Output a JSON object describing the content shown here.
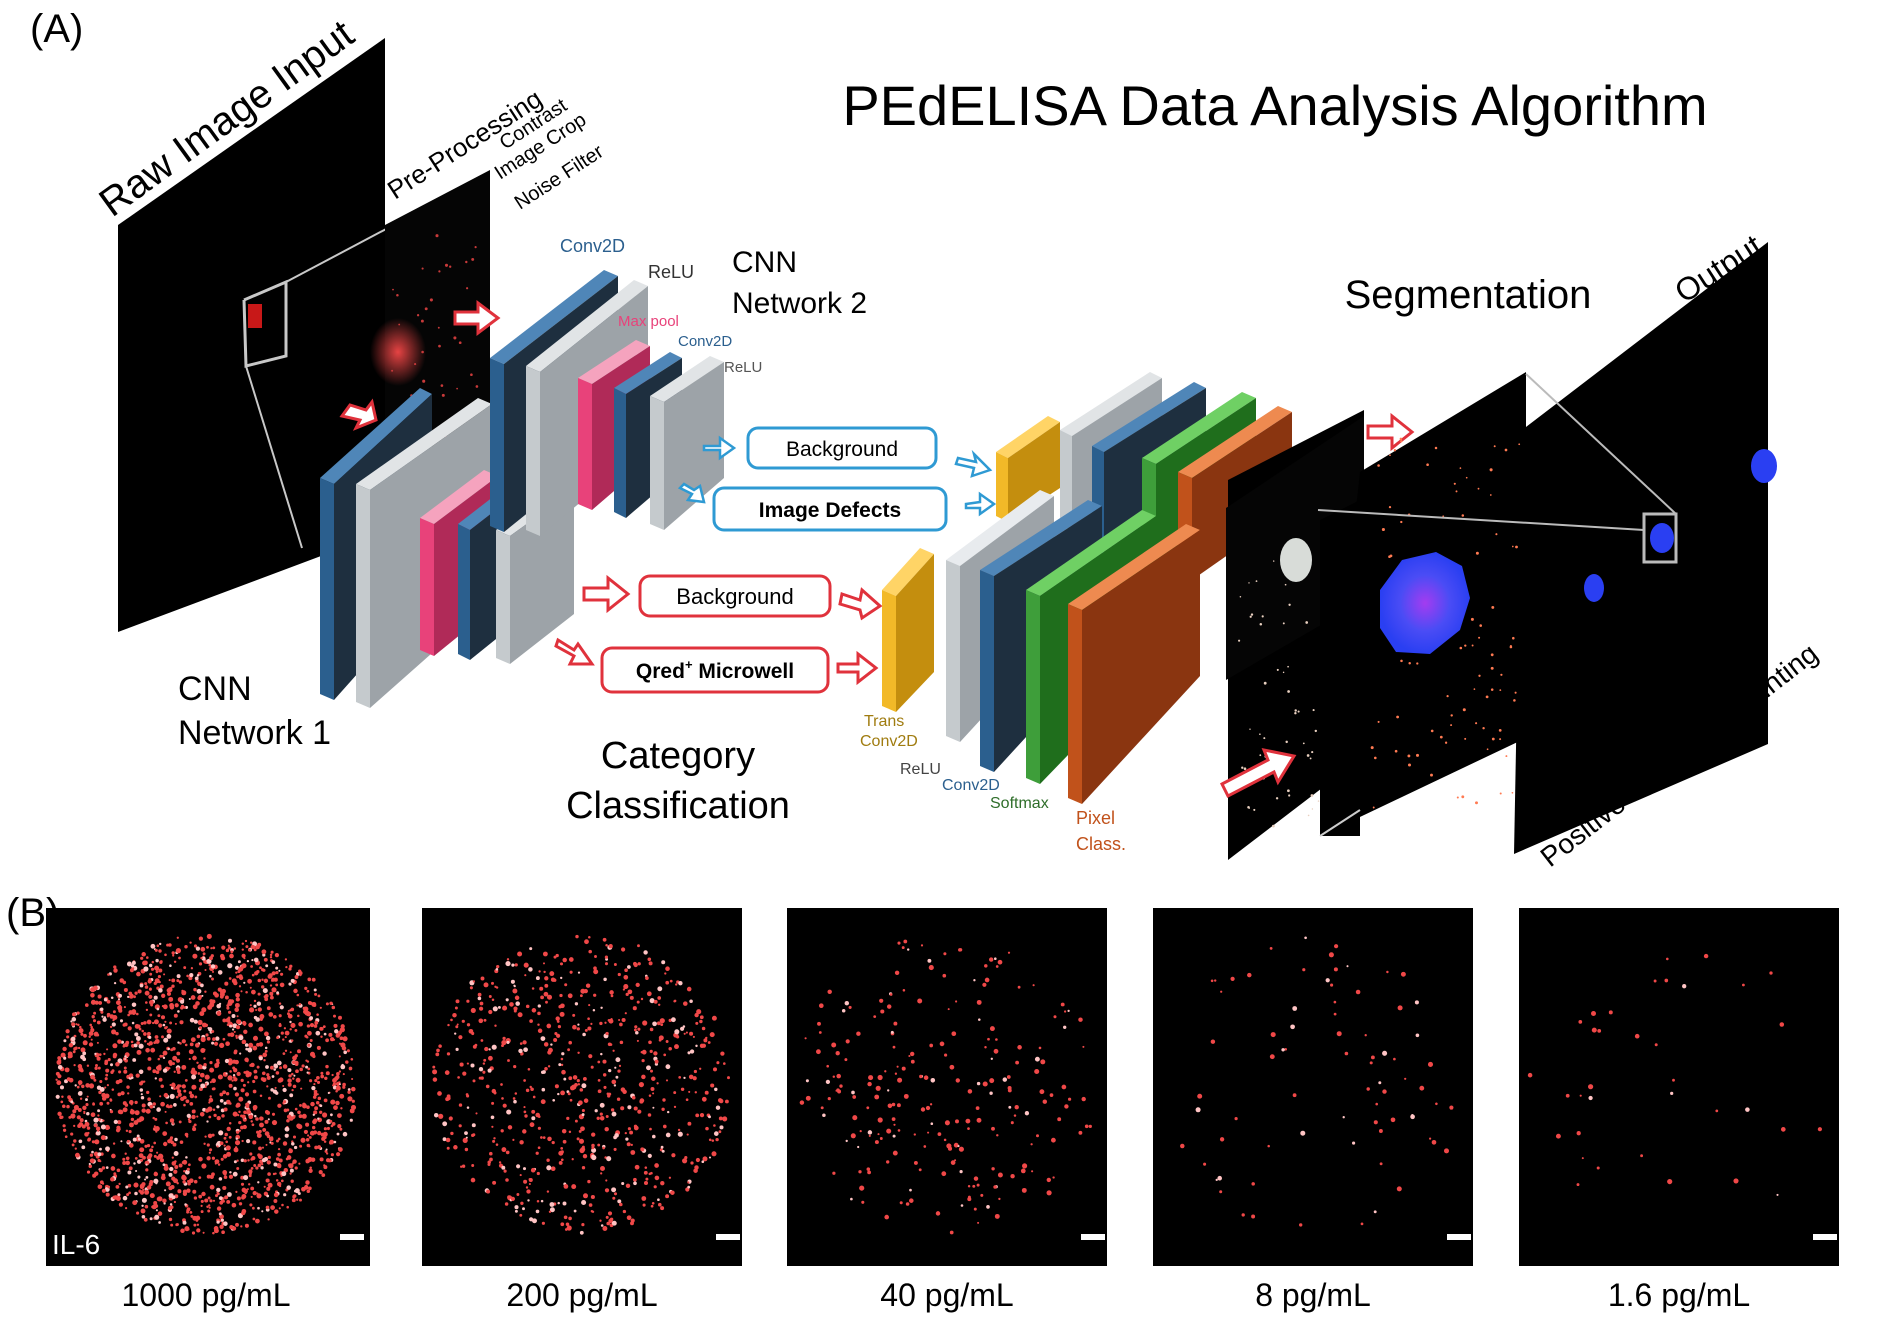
{
  "panel_a": {
    "label": "(A)",
    "title": "PEdELISA Data Analysis Algorithm",
    "raw_image_input": "Raw Image Input",
    "pre_processing": "Pre-Processing",
    "pre_steps": [
      "Contrast",
      "Image Crop",
      "Noise Filter"
    ],
    "cnn1": {
      "line1": "CNN",
      "line2": "Network 1"
    },
    "cnn2": {
      "line1": "CNN",
      "line2": "Network 2"
    },
    "layer_labels": {
      "conv2d_a": "Conv2D",
      "relu_a": "ReLU",
      "maxpool": "Max pool",
      "conv2d_b": "Conv2D",
      "relu_b": "ReLU",
      "trans1": "Trans",
      "trans2": "Conv2D",
      "relu_c": "ReLU",
      "conv2d_c": "Conv2D",
      "softmax": "Softmax",
      "pixel1": "Pixel",
      "pixel2": "Class."
    },
    "boxes": {
      "background_blue": "Background",
      "image_defects": "Image Defects",
      "background_red": "Background",
      "qred_main": "Qred",
      "qred_sup": "+",
      "qred_rest": " Microwell"
    },
    "category": {
      "line1": "Category",
      "line2": "Classification"
    },
    "segmentation": "Segmentation",
    "output": "Output",
    "counting": "Positive Microwell Counting",
    "colors": {
      "red": "#e0323c",
      "blue": "#2f9ad3",
      "pink": "#e8427a",
      "conv_blue": "#2b5f8e",
      "gray": "#c5cacd",
      "yellow": "#f2b928",
      "green": "#3e9e3a",
      "orange": "#c1521b"
    }
  },
  "panel_b": {
    "label": "(B)",
    "analyte": "IL-6",
    "concentrations": [
      "1000 pg/mL",
      "200 pg/mL",
      "40 pg/mL",
      "8 pg/mL",
      "1.6 pg/mL"
    ]
  }
}
